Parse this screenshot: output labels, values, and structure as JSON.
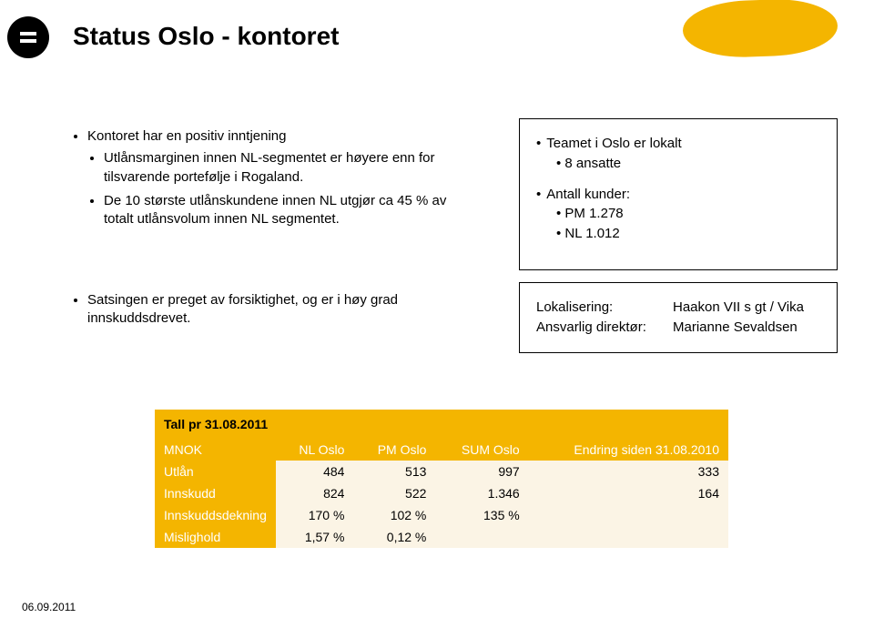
{
  "title": "Status Oslo - kontoret",
  "accent_color": "#f4b500",
  "bullets_main": {
    "item1": "Kontoret har en positiv inntjening",
    "sub1": "Utlånsmarginen innen NL-segmentet er høyere enn for tilsvarende portefølje i Rogaland.",
    "sub2": "De 10 største utlånskundene innen NL utgjør ca 45 % av totalt utlånsvolum innen NL segmentet."
  },
  "bullets_secondary": {
    "item1": "Satsingen er preget av forsiktighet, og er i høy grad innskuddsdrevet."
  },
  "box_team": {
    "line1": "Teamet i Oslo er lokalt",
    "line1_sub": "8 ansatte",
    "line2": "Antall kunder:",
    "line2_sub1": "PM   1.278",
    "line2_sub2": "NL   1.012"
  },
  "box_loc": {
    "row1_label": "Lokalisering:",
    "row1_value": "Haakon VII s gt / Vika",
    "row2_label": "Ansvarlig direktør:",
    "row2_value": "Marianne Sevaldsen"
  },
  "table": {
    "caption": "Tall pr 31.08.2011",
    "header_bg": "#f4b500",
    "body_bg": "#fbf4e5",
    "label_fg": "#ffffff",
    "columns": [
      "MNOK",
      "NL Oslo",
      "PM Oslo",
      "SUM Oslo",
      "Endring siden 31.08.2010"
    ],
    "rows": [
      {
        "label": "Utlån",
        "c1": "484",
        "c2": "513",
        "c3": "997",
        "c4": "333"
      },
      {
        "label": "Innskudd",
        "c1": "824",
        "c2": "522",
        "c3": "1.346",
        "c4": "164"
      },
      {
        "label": "Innskuddsdekning",
        "c1": "170 %",
        "c2": "102 %",
        "c3": "135 %",
        "c4": ""
      },
      {
        "label": "Mislighold",
        "c1": "1,57 %",
        "c2": "0,12 %",
        "c3": "",
        "c4": ""
      }
    ]
  },
  "footer_date": "06.09.2011"
}
